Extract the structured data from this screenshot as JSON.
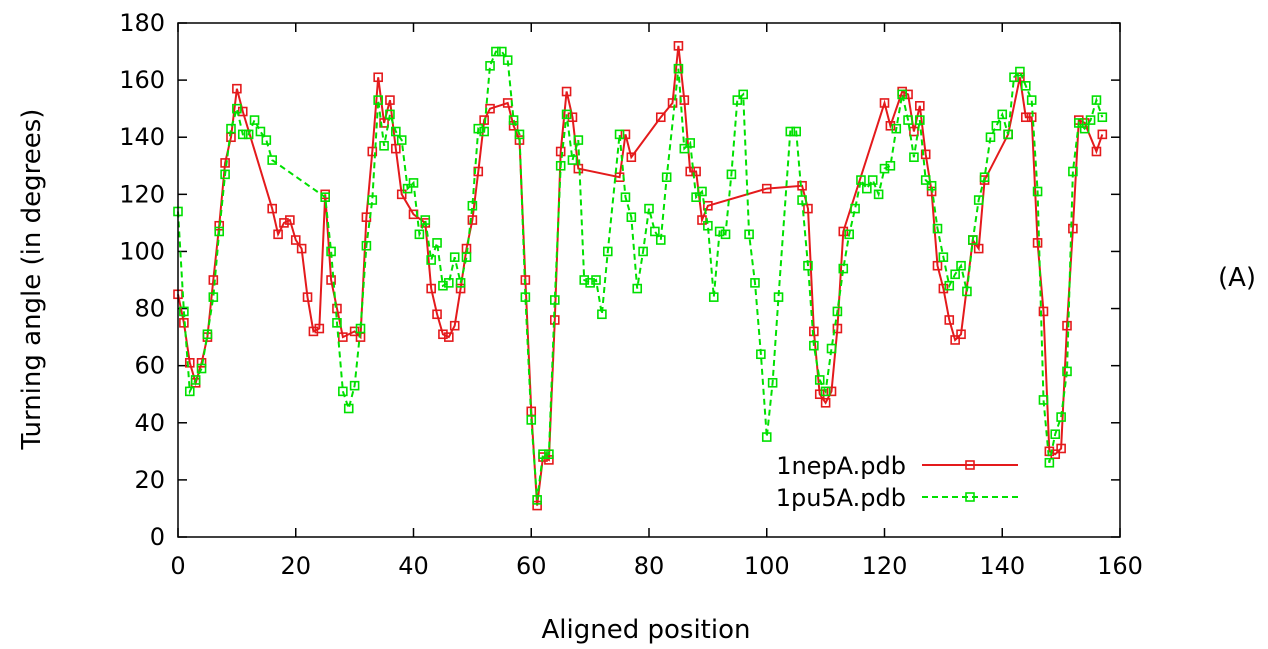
{
  "chart_data": {
    "type": "line",
    "title": "",
    "xlabel": "Aligned position",
    "ylabel": "Turning angle (in degrees)",
    "panel_label": "(A)",
    "xlim": [
      0,
      160
    ],
    "ylim": [
      0,
      180
    ],
    "xticks": [
      0,
      20,
      40,
      60,
      80,
      100,
      120,
      140,
      160
    ],
    "yticks": [
      0,
      20,
      40,
      60,
      80,
      100,
      120,
      140,
      160,
      180
    ],
    "grid": false,
    "legend_position": "bottom-right",
    "series": [
      {
        "name": "1nepA.pdb",
        "color": "#e41a1c",
        "marker_color": "#e41a1c",
        "style": "solid",
        "points": [
          [
            0,
            85
          ],
          [
            1,
            75
          ],
          [
            2,
            61
          ],
          [
            3,
            54
          ],
          [
            4,
            61
          ],
          [
            5,
            70
          ],
          [
            6,
            90
          ],
          [
            7,
            109
          ],
          [
            8,
            131
          ],
          [
            9,
            140
          ],
          [
            10,
            157
          ],
          [
            11,
            149
          ],
          [
            16,
            115
          ],
          [
            17,
            106
          ],
          [
            18,
            110
          ],
          [
            19,
            111
          ],
          [
            20,
            104
          ],
          [
            21,
            101
          ],
          [
            22,
            84
          ],
          [
            23,
            72
          ],
          [
            24,
            73
          ],
          [
            25,
            120
          ],
          [
            26,
            90
          ],
          [
            27,
            80
          ],
          [
            28,
            70
          ],
          [
            30,
            72
          ],
          [
            31,
            70
          ],
          [
            32,
            112
          ],
          [
            33,
            135
          ],
          [
            34,
            161
          ],
          [
            35,
            145
          ],
          [
            36,
            153
          ],
          [
            37,
            136
          ],
          [
            38,
            120
          ],
          [
            40,
            113
          ],
          [
            42,
            110
          ],
          [
            43,
            87
          ],
          [
            44,
            78
          ],
          [
            45,
            71
          ],
          [
            46,
            70
          ],
          [
            47,
            74
          ],
          [
            48,
            87
          ],
          [
            49,
            101
          ],
          [
            50,
            111
          ],
          [
            51,
            128
          ],
          [
            52,
            146
          ],
          [
            53,
            150
          ],
          [
            56,
            152
          ],
          [
            57,
            144
          ],
          [
            58,
            139
          ],
          [
            59,
            90
          ],
          [
            60,
            44
          ],
          [
            61,
            11
          ],
          [
            62,
            28
          ],
          [
            63,
            27
          ],
          [
            64,
            76
          ],
          [
            65,
            135
          ],
          [
            66,
            156
          ],
          [
            67,
            147
          ],
          [
            68,
            129
          ],
          [
            75,
            126
          ],
          [
            76,
            141
          ],
          [
            77,
            133
          ],
          [
            82,
            147
          ],
          [
            84,
            152
          ],
          [
            85,
            172
          ],
          [
            86,
            153
          ],
          [
            87,
            128
          ],
          [
            88,
            128
          ],
          [
            89,
            111
          ],
          [
            90,
            116
          ],
          [
            100,
            122
          ],
          [
            106,
            123
          ],
          [
            107,
            115
          ],
          [
            108,
            72
          ],
          [
            109,
            50
          ],
          [
            110,
            47
          ],
          [
            111,
            51
          ],
          [
            112,
            73
          ],
          [
            113,
            107
          ],
          [
            120,
            152
          ],
          [
            121,
            144
          ],
          [
            123,
            156
          ],
          [
            124,
            155
          ],
          [
            125,
            142
          ],
          [
            126,
            151
          ],
          [
            127,
            134
          ],
          [
            128,
            121
          ],
          [
            129,
            95
          ],
          [
            130,
            87
          ],
          [
            131,
            76
          ],
          [
            132,
            69
          ],
          [
            133,
            71
          ],
          [
            135,
            104
          ],
          [
            136,
            101
          ],
          [
            137,
            125
          ],
          [
            141,
            141
          ],
          [
            143,
            161
          ],
          [
            144,
            147
          ],
          [
            145,
            147
          ],
          [
            146,
            103
          ],
          [
            147,
            79
          ],
          [
            148,
            30
          ],
          [
            149,
            29
          ],
          [
            150,
            31
          ],
          [
            151,
            74
          ],
          [
            152,
            108
          ],
          [
            153,
            146
          ],
          [
            154,
            145
          ],
          [
            156,
            135
          ],
          [
            157,
            141
          ]
        ]
      },
      {
        "name": "1pu5A.pdb",
        "color": "#00e000",
        "marker_color": "#00e000",
        "style": "dashed",
        "points": [
          [
            0,
            114
          ],
          [
            1,
            79
          ],
          [
            2,
            51
          ],
          [
            3,
            55
          ],
          [
            4,
            59
          ],
          [
            5,
            71
          ],
          [
            6,
            84
          ],
          [
            7,
            107
          ],
          [
            8,
            127
          ],
          [
            9,
            143
          ],
          [
            10,
            150
          ],
          [
            11,
            141
          ],
          [
            12,
            141
          ],
          [
            13,
            146
          ],
          [
            14,
            142
          ],
          [
            15,
            139
          ],
          [
            16,
            132
          ],
          [
            25,
            119
          ],
          [
            26,
            100
          ],
          [
            27,
            75
          ],
          [
            28,
            51
          ],
          [
            29,
            45
          ],
          [
            30,
            53
          ],
          [
            31,
            73
          ],
          [
            32,
            102
          ],
          [
            33,
            118
          ],
          [
            34,
            153
          ],
          [
            35,
            137
          ],
          [
            36,
            148
          ],
          [
            37,
            142
          ],
          [
            38,
            139
          ],
          [
            39,
            122
          ],
          [
            40,
            124
          ],
          [
            41,
            106
          ],
          [
            42,
            111
          ],
          [
            43,
            97
          ],
          [
            44,
            103
          ],
          [
            45,
            88
          ],
          [
            46,
            89
          ],
          [
            47,
            98
          ],
          [
            48,
            89
          ],
          [
            49,
            98
          ],
          [
            50,
            116
          ],
          [
            51,
            143
          ],
          [
            52,
            142
          ],
          [
            53,
            165
          ],
          [
            54,
            170
          ],
          [
            55,
            170
          ],
          [
            56,
            167
          ],
          [
            57,
            146
          ],
          [
            58,
            141
          ],
          [
            59,
            84
          ],
          [
            60,
            41
          ],
          [
            61,
            13
          ],
          [
            62,
            29
          ],
          [
            63,
            29
          ],
          [
            64,
            83
          ],
          [
            65,
            130
          ],
          [
            66,
            148
          ],
          [
            67,
            132
          ],
          [
            68,
            139
          ],
          [
            69,
            90
          ],
          [
            70,
            89
          ],
          [
            71,
            90
          ],
          [
            72,
            78
          ],
          [
            73,
            100
          ],
          [
            75,
            141
          ],
          [
            76,
            119
          ],
          [
            77,
            112
          ],
          [
            78,
            87
          ],
          [
            79,
            100
          ],
          [
            80,
            115
          ],
          [
            81,
            107
          ],
          [
            82,
            104
          ],
          [
            83,
            126
          ],
          [
            85,
            164
          ],
          [
            86,
            136
          ],
          [
            87,
            138
          ],
          [
            88,
            119
          ],
          [
            89,
            121
          ],
          [
            90,
            109
          ],
          [
            91,
            84
          ],
          [
            92,
            107
          ],
          [
            93,
            106
          ],
          [
            94,
            127
          ],
          [
            95,
            153
          ],
          [
            96,
            155
          ],
          [
            97,
            106
          ],
          [
            98,
            89
          ],
          [
            99,
            64
          ],
          [
            100,
            35
          ],
          [
            101,
            54
          ],
          [
            102,
            84
          ],
          [
            104,
            142
          ],
          [
            105,
            142
          ],
          [
            106,
            118
          ],
          [
            107,
            95
          ],
          [
            108,
            67
          ],
          [
            109,
            55
          ],
          [
            110,
            51
          ],
          [
            111,
            66
          ],
          [
            112,
            79
          ],
          [
            113,
            94
          ],
          [
            114,
            106
          ],
          [
            115,
            115
          ],
          [
            116,
            125
          ],
          [
            117,
            122
          ],
          [
            118,
            125
          ],
          [
            119,
            120
          ],
          [
            120,
            129
          ],
          [
            121,
            130
          ],
          [
            122,
            143
          ],
          [
            123,
            155
          ],
          [
            124,
            146
          ],
          [
            125,
            133
          ],
          [
            126,
            146
          ],
          [
            127,
            125
          ],
          [
            128,
            123
          ],
          [
            129,
            108
          ],
          [
            130,
            98
          ],
          [
            131,
            88
          ],
          [
            132,
            92
          ],
          [
            133,
            95
          ],
          [
            134,
            86
          ],
          [
            135,
            104
          ],
          [
            136,
            118
          ],
          [
            137,
            126
          ],
          [
            138,
            140
          ],
          [
            139,
            144
          ],
          [
            140,
            148
          ],
          [
            141,
            141
          ],
          [
            142,
            161
          ],
          [
            143,
            163
          ],
          [
            144,
            158
          ],
          [
            145,
            153
          ],
          [
            146,
            121
          ],
          [
            147,
            48
          ],
          [
            148,
            26
          ],
          [
            149,
            36
          ],
          [
            150,
            42
          ],
          [
            151,
            58
          ],
          [
            152,
            128
          ],
          [
            153,
            145
          ],
          [
            154,
            143
          ],
          [
            155,
            146
          ],
          [
            156,
            153
          ],
          [
            157,
            147
          ]
        ]
      }
    ]
  }
}
